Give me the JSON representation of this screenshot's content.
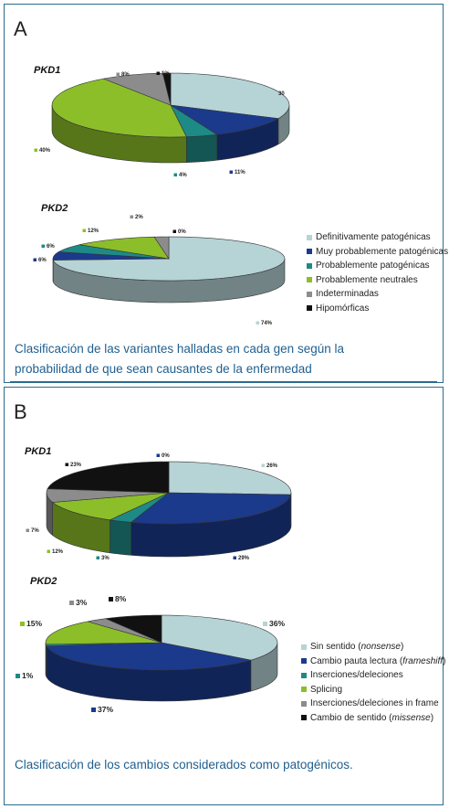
{
  "panel_a": {
    "letter": "A",
    "caption_line1": "Clasificación de las variantes halladas en cada gen según la",
    "caption_line2": "probabilidad de que sean causantes de la enfermedad",
    "legend": [
      {
        "label": "Definitivamente patogénicas",
        "color": "#b6d3d6"
      },
      {
        "label": "Muy probablemente patogénicas",
        "color": "#1c3a8c"
      },
      {
        "label": "Probablemente patogénicas",
        "color": "#1e8a86"
      },
      {
        "label": "Probablemente neutrales",
        "color": "#8cbe2a"
      },
      {
        "label": "Indeterminadas",
        "color": "#8c8c8c"
      },
      {
        "label": "Hipomórficas",
        "color": "#111111"
      }
    ]
  },
  "panel_b": {
    "letter": "B",
    "caption_line1": "Clasificación de los cambios considerados como patogénicos.",
    "legend": [
      {
        "label": "Sin sentido",
        "italic": "nonsense",
        "color": "#b6d3d6"
      },
      {
        "label": "Cambio pauta lectura",
        "italic": "frameshiff",
        "color": "#1c3a8c"
      },
      {
        "label": "Inserciones/deleciones",
        "italic": "",
        "color": "#1e8a86"
      },
      {
        "label": "Splicing",
        "italic": "",
        "color": "#8cbe2a"
      },
      {
        "label": "Inserciones/deleciones in frame",
        "italic": "",
        "color": "#8c8c8c"
      },
      {
        "label": "Cambio de sentido",
        "italic": "missense",
        "color": "#111111"
      }
    ]
  },
  "chart_data": [
    {
      "type": "pie",
      "title": "PKD1",
      "categories": [
        "Definitivamente patogénicas",
        "Muy probablemente patogénicas",
        "Probablemente patogénicas",
        "Probablemente neutrales",
        "Indeterminadas",
        "Hipomórficas"
      ],
      "values": [
        30,
        11,
        4,
        40,
        8,
        1
      ],
      "labels": [
        "30",
        "11%",
        "4%",
        "40%",
        "8%",
        "1%"
      ],
      "colors": [
        "#b6d3d6",
        "#1c3a8c",
        "#1e8a86",
        "#8cbe2a",
        "#8c8c8c",
        "#111111"
      ]
    },
    {
      "type": "pie",
      "title": "PKD2",
      "categories": [
        "Definitivamente patogénicas",
        "Muy probablemente patogénicas",
        "Probablemente patogénicas",
        "Probablemente neutrales",
        "Indeterminadas",
        "Hipomórficas"
      ],
      "values": [
        74,
        6,
        6,
        12,
        2,
        0
      ],
      "labels": [
        "74%",
        "6%",
        "6%",
        "12%",
        "2%",
        "0%"
      ],
      "colors": [
        "#b6d3d6",
        "#1c3a8c",
        "#1e8a86",
        "#8cbe2a",
        "#8c8c8c",
        "#111111"
      ]
    },
    {
      "type": "pie",
      "title": "PKD1",
      "categories": [
        "Sin sentido (nonsense)",
        "Cambio pauta lectura (frameshiff)",
        "Inserciones/deleciones",
        "Splicing",
        "Inserciones/deleciones in frame",
        "Cambio de sentido (missense)"
      ],
      "values": [
        26,
        29,
        3,
        12,
        7,
        23
      ],
      "labels": [
        "26%",
        "29%",
        "3%",
        "12%",
        "7%",
        "23%"
      ],
      "colors": [
        "#b6d3d6",
        "#1c3a8c",
        "#1e8a86",
        "#8cbe2a",
        "#8c8c8c",
        "#111111"
      ],
      "extra_label": "0%"
    },
    {
      "type": "pie",
      "title": "PKD2",
      "categories": [
        "Sin sentido (nonsense)",
        "Cambio pauta lectura (frameshiff)",
        "Inserciones/deleciones",
        "Splicing",
        "Inserciones/deleciones in frame",
        "Cambio de sentido (missense)"
      ],
      "values": [
        36,
        37,
        1,
        15,
        3,
        8
      ],
      "labels": [
        "36%",
        "37%",
        "1%",
        "15%",
        "3%",
        "8%"
      ],
      "colors": [
        "#b6d3d6",
        "#1c3a8c",
        "#1e8a86",
        "#8cbe2a",
        "#8c8c8c",
        "#111111"
      ]
    }
  ]
}
